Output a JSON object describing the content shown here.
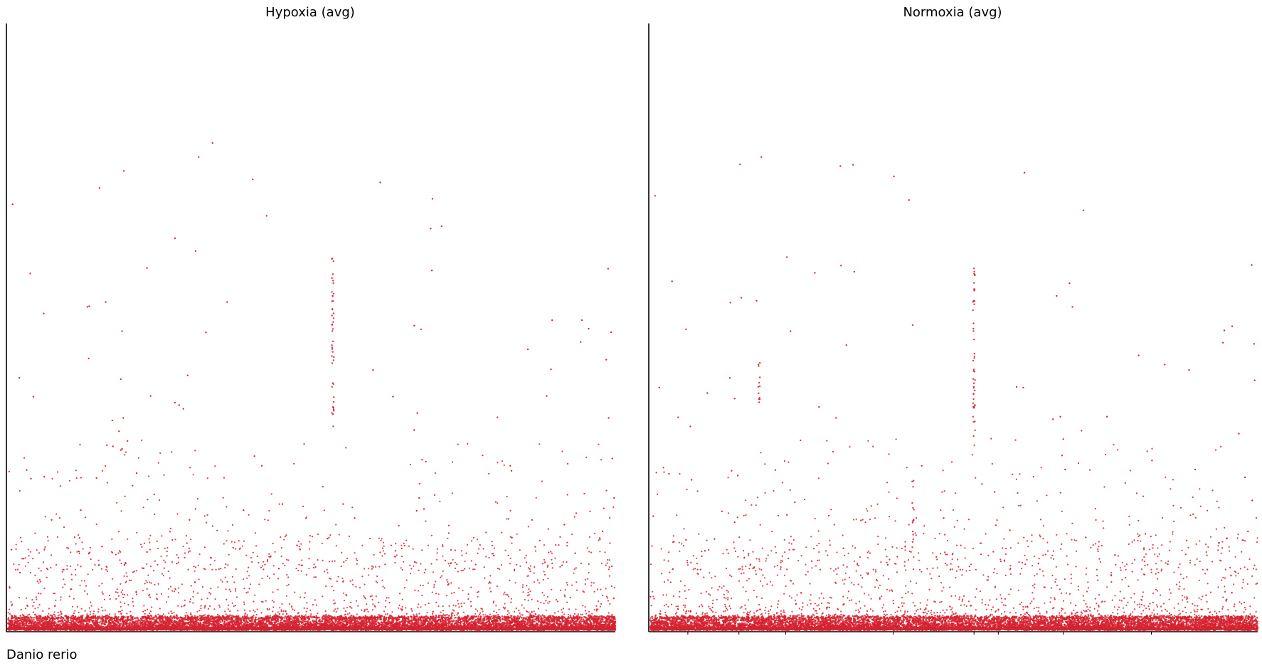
{
  "footer": {
    "label": "Danio rerio"
  },
  "colors": {
    "point": "#d62230",
    "axis": "#000000"
  },
  "chart_data": [
    {
      "type": "scatter",
      "title": "Hypoxia (avg)",
      "xlabel": "",
      "ylabel": "",
      "xlim": [
        0,
        100
      ],
      "ylim": [
        0,
        100
      ],
      "grid": false,
      "legend": "none",
      "x_ticks": [],
      "baseline_points": 9000,
      "columns": [
        {
          "x": 53.5,
          "ymin": 33,
          "ymax": 63,
          "count": 45
        }
      ],
      "outliers": [
        {
          "x": 0.8,
          "y": 70.2
        },
        {
          "x": 3.7,
          "y": 58.8
        },
        {
          "x": 1.9,
          "y": 41.6
        },
        {
          "x": 4.2,
          "y": 38.5
        },
        {
          "x": 5.9,
          "y": 52.2
        },
        {
          "x": 15.1,
          "y": 72.9
        },
        {
          "x": 19.1,
          "y": 75.7
        },
        {
          "x": 31.4,
          "y": 78.0
        },
        {
          "x": 33.7,
          "y": 80.3
        },
        {
          "x": 40.3,
          "y": 74.3
        },
        {
          "x": 42.6,
          "y": 68.3
        },
        {
          "x": 27.5,
          "y": 64.6
        },
        {
          "x": 30.9,
          "y": 62.5
        },
        {
          "x": 61.3,
          "y": 73.8
        },
        {
          "x": 69.9,
          "y": 71.1
        },
        {
          "x": 69.6,
          "y": 66.2
        },
        {
          "x": 71.4,
          "y": 66.6
        },
        {
          "x": 69.8,
          "y": 59.3
        },
        {
          "x": 22.9,
          "y": 59.7
        },
        {
          "x": 13.4,
          "y": 53.4
        },
        {
          "x": 16.1,
          "y": 54.1
        },
        {
          "x": 13.1,
          "y": 53.3
        },
        {
          "x": 18.8,
          "y": 49.3
        },
        {
          "x": 36.1,
          "y": 54.1
        },
        {
          "x": 32.6,
          "y": 49.1
        },
        {
          "x": 13.3,
          "y": 44.8
        },
        {
          "x": 18.6,
          "y": 41.4
        },
        {
          "x": 29.6,
          "y": 42.0
        },
        {
          "x": 27.5,
          "y": 37.5
        },
        {
          "x": 28.2,
          "y": 37.1
        },
        {
          "x": 28.9,
          "y": 36.5
        },
        {
          "x": 23.5,
          "y": 38.6
        },
        {
          "x": 17.2,
          "y": 34.6
        },
        {
          "x": 60.1,
          "y": 42.9
        },
        {
          "x": 63.4,
          "y": 38.5
        },
        {
          "x": 66.9,
          "y": 50.2
        },
        {
          "x": 68.0,
          "y": 49.6
        },
        {
          "x": 89.6,
          "y": 51.1
        },
        {
          "x": 94.5,
          "y": 51.1
        },
        {
          "x": 95.6,
          "y": 49.7
        },
        {
          "x": 99.3,
          "y": 49.1
        },
        {
          "x": 98.8,
          "y": 59.6
        },
        {
          "x": 85.6,
          "y": 46.3
        },
        {
          "x": 94.3,
          "y": 47.5
        },
        {
          "x": 98.5,
          "y": 44.6
        },
        {
          "x": 89.4,
          "y": 43.0
        },
        {
          "x": 88.7,
          "y": 38.6
        },
        {
          "x": 80.6,
          "y": 35.1
        },
        {
          "x": 98.9,
          "y": 35.0
        },
        {
          "x": 19.0,
          "y": 35.0
        },
        {
          "x": 18.3,
          "y": 32.8
        },
        {
          "x": 19.7,
          "y": 31.2
        },
        {
          "x": 17.3,
          "y": 30.3
        },
        {
          "x": 16.3,
          "y": 30.5
        },
        {
          "x": 18.8,
          "y": 29.9
        },
        {
          "x": 18.6,
          "y": 29.7
        },
        {
          "x": 68.2,
          "y": 28.1
        },
        {
          "x": 68.8,
          "y": 27.8
        },
        {
          "x": 67.4,
          "y": 35.8
        },
        {
          "x": 66.9,
          "y": 33.0
        },
        {
          "x": 67.7,
          "y": 21.8
        },
        {
          "x": 68.5,
          "y": 20.0
        },
        {
          "x": 67.3,
          "y": 19.7
        },
        {
          "x": 82.7,
          "y": 27.1
        },
        {
          "x": 82.9,
          "y": 26.3
        },
        {
          "x": 99.5,
          "y": 28.3
        },
        {
          "x": 99.8,
          "y": 21.8
        },
        {
          "x": 3.1,
          "y": 26.4
        },
        {
          "x": 6.0,
          "y": 25.3
        },
        {
          "x": 3.8,
          "y": 25.0
        },
        {
          "x": 14.6,
          "y": 25.1
        },
        {
          "x": 21.2,
          "y": 25.9
        },
        {
          "x": 40.6,
          "y": 28.7
        },
        {
          "x": 41.8,
          "y": 27.1
        },
        {
          "x": 45.2,
          "y": 20.8
        },
        {
          "x": 0.6,
          "y": 13.3
        },
        {
          "x": 2.6,
          "y": 11.8
        },
        {
          "x": 2.0,
          "y": 9.5
        },
        {
          "x": 7.2,
          "y": 18.2
        },
        {
          "x": 12.0,
          "y": 19.8
        },
        {
          "x": 24.1,
          "y": 22.4
        },
        {
          "x": 29.9,
          "y": 18.2
        },
        {
          "x": 30.9,
          "y": 20.0
        },
        {
          "x": 38.8,
          "y": 19.8
        },
        {
          "x": 55.2,
          "y": 20.8
        },
        {
          "x": 57.1,
          "y": 18.5
        },
        {
          "x": 86.3,
          "y": 18.2
        },
        {
          "x": 91.6,
          "y": 17.4
        },
        {
          "x": 97.9,
          "y": 16.3
        },
        {
          "x": 93.4,
          "y": 12.7
        },
        {
          "x": 11.8,
          "y": 15.2
        },
        {
          "x": 15.5,
          "y": 13.8
        },
        {
          "x": 22.9,
          "y": 12.9
        },
        {
          "x": 27.8,
          "y": 11.0
        },
        {
          "x": 37.1,
          "y": 13.6
        },
        {
          "x": 43.2,
          "y": 12.1
        },
        {
          "x": 47.6,
          "y": 14.0
        },
        {
          "x": 63.8,
          "y": 13.1
        },
        {
          "x": 72.0,
          "y": 11.5
        },
        {
          "x": 80.0,
          "y": 12.3
        },
        {
          "x": 88.4,
          "y": 11.2
        }
      ]
    },
    {
      "type": "scatter",
      "title": "Normoxia (avg)",
      "xlabel": "",
      "ylabel": "",
      "xlim": [
        0,
        100
      ],
      "ylim": [
        0,
        100
      ],
      "grid": false,
      "legend": "none",
      "x_ticks": [
        6.2,
        14.6,
        22.3,
        40.0,
        53.3,
        57.3,
        68.0,
        82.5
      ],
      "baseline_points": 9000,
      "columns": [
        {
          "x": 53.3,
          "ymin": 32,
          "ymax": 60,
          "count": 45
        },
        {
          "x": 17.9,
          "ymin": 37,
          "ymax": 47,
          "count": 12
        },
        {
          "x": 43.3,
          "ymin": 13,
          "ymax": 25,
          "count": 14
        }
      ],
      "outliers": [
        {
          "x": 0.8,
          "y": 71.6
        },
        {
          "x": 14.8,
          "y": 76.8
        },
        {
          "x": 18.3,
          "y": 78.0
        },
        {
          "x": 31.3,
          "y": 76.5
        },
        {
          "x": 33.4,
          "y": 76.7
        },
        {
          "x": 40.1,
          "y": 74.8
        },
        {
          "x": 42.6,
          "y": 70.9
        },
        {
          "x": 61.6,
          "y": 75.4
        },
        {
          "x": 71.3,
          "y": 69.2
        },
        {
          "x": 99.0,
          "y": 60.2
        },
        {
          "x": 3.6,
          "y": 57.5
        },
        {
          "x": 13.2,
          "y": 54.0
        },
        {
          "x": 15.0,
          "y": 54.8
        },
        {
          "x": 22.5,
          "y": 61.5
        },
        {
          "x": 27.1,
          "y": 58.9
        },
        {
          "x": 31.4,
          "y": 60.1
        },
        {
          "x": 33.6,
          "y": 59.1
        },
        {
          "x": 17.5,
          "y": 54.3
        },
        {
          "x": 66.9,
          "y": 55.1
        },
        {
          "x": 69.0,
          "y": 57.2
        },
        {
          "x": 69.5,
          "y": 53.3
        },
        {
          "x": 5.9,
          "y": 49.6
        },
        {
          "x": 23.1,
          "y": 49.3
        },
        {
          "x": 32.3,
          "y": 47.0
        },
        {
          "x": 43.2,
          "y": 50.3
        },
        {
          "x": 53.4,
          "y": 56.2
        },
        {
          "x": 80.4,
          "y": 45.3
        },
        {
          "x": 84.7,
          "y": 43.8
        },
        {
          "x": 88.7,
          "y": 42.9
        },
        {
          "x": 94.5,
          "y": 49.4
        },
        {
          "x": 95.8,
          "y": 50.1
        },
        {
          "x": 94.3,
          "y": 47.4
        },
        {
          "x": 99.4,
          "y": 47.2
        },
        {
          "x": 99.5,
          "y": 41.2
        },
        {
          "x": 13.1,
          "y": 41.6
        },
        {
          "x": 1.5,
          "y": 40.0
        },
        {
          "x": 4.6,
          "y": 35.1
        },
        {
          "x": 6.6,
          "y": 33.6
        },
        {
          "x": 9.4,
          "y": 39.1
        },
        {
          "x": 13.9,
          "y": 38.2
        },
        {
          "x": 27.8,
          "y": 36.8
        },
        {
          "x": 30.6,
          "y": 35.0
        },
        {
          "x": 60.3,
          "y": 40.1
        },
        {
          "x": 61.4,
          "y": 40.0
        },
        {
          "x": 66.3,
          "y": 34.8
        },
        {
          "x": 67.5,
          "y": 35.2
        },
        {
          "x": 68.0,
          "y": 31.5
        },
        {
          "x": 71.0,
          "y": 32.9
        },
        {
          "x": 75.2,
          "y": 35.2
        },
        {
          "x": 82.6,
          "y": 28.0
        },
        {
          "x": 89.7,
          "y": 26.5
        },
        {
          "x": 96.9,
          "y": 32.4
        },
        {
          "x": 3.1,
          "y": 25.8
        },
        {
          "x": 6.8,
          "y": 24.8
        },
        {
          "x": 13.4,
          "y": 26.3
        },
        {
          "x": 14.4,
          "y": 25.5
        },
        {
          "x": 20.6,
          "y": 26.4
        },
        {
          "x": 23.8,
          "y": 21.1
        },
        {
          "x": 44.7,
          "y": 27.1
        },
        {
          "x": 48.3,
          "y": 18.5
        },
        {
          "x": 54.6,
          "y": 24.1
        },
        {
          "x": 56.7,
          "y": 22.8
        },
        {
          "x": 67.8,
          "y": 28.8
        },
        {
          "x": 68.3,
          "y": 26.5
        },
        {
          "x": 97.9,
          "y": 25.2
        },
        {
          "x": 99.1,
          "y": 21.4
        },
        {
          "x": 0.5,
          "y": 18.8
        },
        {
          "x": 3.9,
          "y": 14.6
        },
        {
          "x": 5.9,
          "y": 14.9
        },
        {
          "x": 11.8,
          "y": 19.6
        },
        {
          "x": 13.9,
          "y": 17.8
        },
        {
          "x": 22.5,
          "y": 19.0
        },
        {
          "x": 29.4,
          "y": 18.9
        },
        {
          "x": 34.7,
          "y": 18.1
        },
        {
          "x": 56.9,
          "y": 17.3
        },
        {
          "x": 59.2,
          "y": 16.5
        },
        {
          "x": 71.7,
          "y": 15.3
        },
        {
          "x": 81.5,
          "y": 15.9
        },
        {
          "x": 88.3,
          "y": 14.8
        },
        {
          "x": 93.6,
          "y": 14.4
        },
        {
          "x": 98.4,
          "y": 16.3
        },
        {
          "x": 9.0,
          "y": 13.1
        },
        {
          "x": 16.2,
          "y": 12.6
        },
        {
          "x": 26.6,
          "y": 11.4
        },
        {
          "x": 31.8,
          "y": 13.5
        },
        {
          "x": 39.1,
          "y": 10.8
        },
        {
          "x": 47.1,
          "y": 12.1
        },
        {
          "x": 63.9,
          "y": 11.0
        },
        {
          "x": 76.5,
          "y": 12.4
        },
        {
          "x": 85.2,
          "y": 10.9
        },
        {
          "x": 91.7,
          "y": 10.0
        }
      ]
    }
  ]
}
